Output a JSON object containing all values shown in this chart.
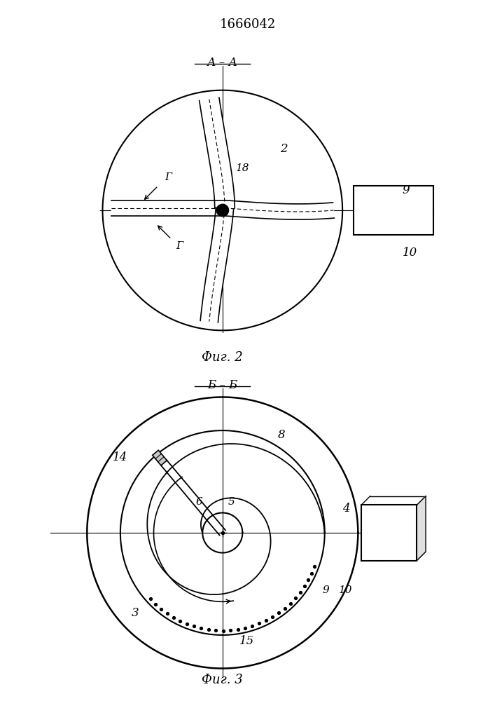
{
  "title": "1666042",
  "fig2_label": "А – А",
  "fig2_caption": "Фиг. 2",
  "fig3_label": "Б – Б",
  "fig3_caption": "Фиг. 3",
  "bg_color": "#ffffff",
  "line_color": "#000000"
}
